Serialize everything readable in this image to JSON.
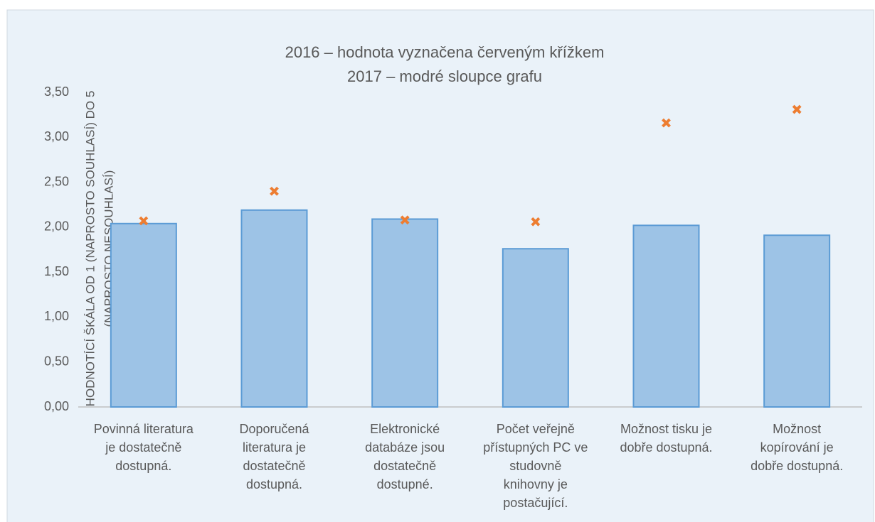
{
  "chart_data": {
    "type": "bar",
    "title": [
      "2016 – hodnota vyznačena červeným křížkem",
      "2017 – modré sloupce grafu"
    ],
    "y_label": [
      "HODNOTÍCÍ ŠKÁLA OD 1 (NAPROSTO SOUHLASÍ) DO 5",
      "(NAPROSTO NESOUHLASÍ)"
    ],
    "categories": [
      [
        "Povinná literatura",
        "je dostatečně",
        "dostupná."
      ],
      [
        "Doporučená",
        "literatura je",
        "dostatečně",
        "dostupná."
      ],
      [
        "Elektronické",
        "databáze jsou",
        "dostatečně",
        "dostupné."
      ],
      [
        "Počet veřejně",
        "přístupných PC ve",
        "studovně",
        "knihovny je",
        "postačující."
      ],
      [
        "Možnost tisku je",
        "dobře dostupná."
      ],
      [
        "Možnost",
        "kopírování je",
        "dobře dostupná."
      ]
    ],
    "series": [
      {
        "type": "bar",
        "color": "#9dc3e6",
        "values": [
          2.04,
          2.19,
          2.09,
          1.76,
          2.02,
          1.91
        ]
      },
      {
        "type": "marker",
        "color": "#ed7d31",
        "values": [
          2.07,
          2.4,
          2.08,
          2.06,
          3.16,
          3.31
        ]
      }
    ],
    "ylim": [
      0,
      3.5
    ],
    "yticks": [
      {
        "value": 0,
        "label": "0,00"
      },
      {
        "value": 0.5,
        "label": "0,50"
      },
      {
        "value": 1,
        "label": "1,00"
      },
      {
        "value": 1.5,
        "label": "1,50"
      },
      {
        "value": 2,
        "label": "2,00"
      },
      {
        "value": 2.5,
        "label": "2,50"
      },
      {
        "value": 3,
        "label": "3,00"
      },
      {
        "value": 3.5,
        "label": "3,50"
      }
    ],
    "grid": false
  }
}
